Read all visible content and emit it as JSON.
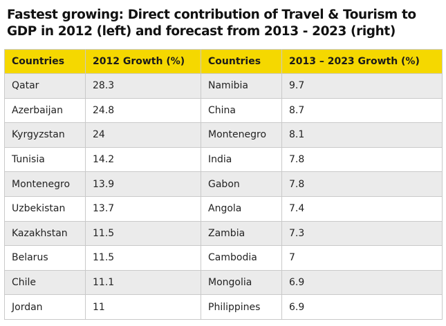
{
  "chart_data": {
    "type": "table",
    "title": "Fastest growing: Direct contribution of Travel & Tourism to GDP in 2012 (left) and forecast from 2013 - 2023 (right)",
    "columns": [
      "Countries",
      "2012 Growth (%)",
      "Countries",
      "2013 – 2023 Growth (%)"
    ],
    "rows": [
      [
        "Qatar",
        "28.3",
        "Namibia",
        "9.7"
      ],
      [
        "Azerbaijan",
        "24.8",
        "China",
        "8.7"
      ],
      [
        "Kyrgyzstan",
        "24",
        "Montenegro",
        "8.1"
      ],
      [
        "Tunisia",
        "14.2",
        "India",
        "7.8"
      ],
      [
        "Montenegro",
        "13.9",
        "Gabon",
        "7.8"
      ],
      [
        "Uzbekistan",
        "13.7",
        "Angola",
        "7.4"
      ],
      [
        "Kazakhstan",
        "11.5",
        "Zambia",
        "7.3"
      ],
      [
        "Belarus",
        "11.5",
        "Cambodia",
        "7"
      ],
      [
        "Chile",
        "11.1",
        "Mongolia",
        "6.9"
      ],
      [
        "Jordan",
        "11",
        "Philippines",
        "6.9"
      ]
    ],
    "colors": {
      "header_background": "#f5d800",
      "row_stripe": "#ebebeb",
      "row_plain": "#ffffff",
      "border": "#c9c9c9"
    }
  }
}
